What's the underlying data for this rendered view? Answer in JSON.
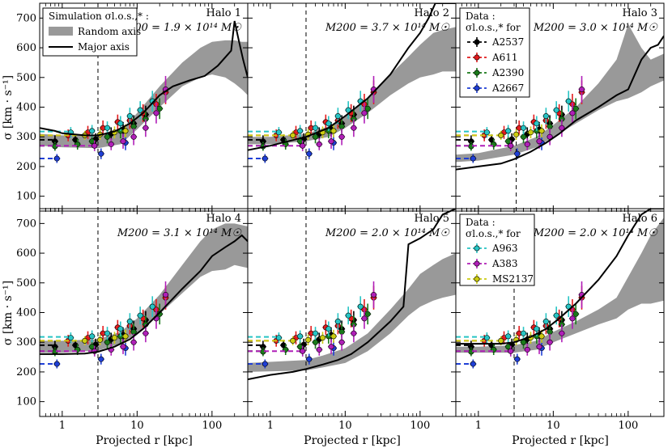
{
  "figure": {
    "ylabel": "σ [km · s⁻¹]",
    "xlabel": "Projected r [kpc]",
    "legend_sim": {
      "title": "Simulation σl.o.s.,* :",
      "items": [
        "Random axis",
        "Major axis"
      ]
    },
    "legend_data1": {
      "title": "Data :",
      "subtitle": "σl.o.s.,* for",
      "items": [
        "A2537",
        "A611",
        "A2390",
        "A2667"
      ]
    },
    "legend_data2": {
      "title": "Data :",
      "subtitle": "σl.o.s.,* for",
      "items": [
        "A963",
        "A383",
        "MS2137"
      ]
    }
  },
  "colors": {
    "A2537": "#000000",
    "A611": "#e31a1c",
    "A2390": "#1a7a1a",
    "A2667": "#1f3fd6",
    "A963": "#27c4c4",
    "A383": "#b01fb8",
    "MS2137": "#cccc10",
    "band": "#999999",
    "major": "#000000"
  },
  "chart_data": [
    {
      "type": "line",
      "panel": 1,
      "title": "Halo 1",
      "mass": "M200 = 1.9 × 10¹⁴ M☉",
      "xscale": "log",
      "xlim": [
        0.5,
        300
      ],
      "ylim": [
        50,
        750
      ],
      "yticks": [
        100,
        200,
        300,
        400,
        500,
        600,
        700
      ],
      "xticks": [
        1,
        10,
        100
      ],
      "xticklabels": [
        "1",
        "10",
        "100"
      ],
      "vline": 3,
      "band": {
        "x": [
          0.5,
          1,
          3,
          6,
          10,
          20,
          40,
          70,
          100,
          150,
          200,
          250,
          300
        ],
        "lo": [
          270,
          265,
          262,
          275,
          325,
          400,
          470,
          500,
          510,
          500,
          480,
          460,
          440
        ],
        "hi": [
          310,
          305,
          305,
          320,
          380,
          470,
          550,
          600,
          620,
          625,
          625,
          620,
          620
        ]
      },
      "major": {
        "x": [
          0.5,
          0.8,
          1,
          2,
          3,
          5,
          8,
          12,
          20,
          30,
          50,
          80,
          120,
          180,
          200,
          230,
          260,
          300
        ],
        "y": [
          330,
          320,
          312,
          305,
          305,
          318,
          345,
          380,
          440,
          470,
          490,
          505,
          540,
          590,
          690,
          620,
          560,
          500
        ]
      }
    },
    {
      "type": "line",
      "panel": 2,
      "title": "Halo 2",
      "mass": "M200 = 3.7 × 10¹⁴ M☉",
      "xscale": "log",
      "xlim": [
        0.5,
        300
      ],
      "ylim": [
        50,
        750
      ],
      "vline": 3,
      "band": {
        "x": [
          0.5,
          1,
          3,
          6,
          10,
          20,
          40,
          70,
          100,
          150,
          200,
          300
        ],
        "lo": [
          275,
          275,
          285,
          300,
          330,
          380,
          440,
          480,
          500,
          510,
          520,
          520
        ],
        "hi": [
          300,
          300,
          310,
          335,
          370,
          430,
          510,
          570,
          610,
          650,
          660,
          670
        ]
      },
      "major": {
        "x": [
          0.5,
          1,
          3,
          6,
          10,
          20,
          40,
          70,
          100,
          130,
          160,
          200,
          300
        ],
        "y": [
          255,
          270,
          300,
          330,
          370,
          430,
          510,
          600,
          650,
          700,
          750,
          750,
          750
        ]
      }
    },
    {
      "type": "line",
      "panel": 3,
      "title": "Halo 3",
      "mass": "M200 = 3.0 × 10¹⁴ M☉",
      "xscale": "log",
      "xlim": [
        0.5,
        300
      ],
      "ylim": [
        50,
        750
      ],
      "vline": 3.2,
      "band": {
        "x": [
          0.5,
          1,
          3,
          6,
          10,
          20,
          40,
          70,
          100,
          150,
          200,
          300
        ],
        "lo": [
          215,
          220,
          240,
          265,
          300,
          345,
          390,
          420,
          430,
          450,
          470,
          490
        ],
        "hi": [
          240,
          245,
          270,
          300,
          340,
          400,
          480,
          560,
          680,
          600,
          560,
          580
        ]
      },
      "major": {
        "x": [
          0.5,
          1,
          2,
          3,
          5,
          8,
          12,
          20,
          40,
          70,
          100,
          150,
          200,
          250,
          300
        ],
        "y": [
          190,
          200,
          210,
          225,
          250,
          280,
          310,
          355,
          400,
          440,
          460,
          560,
          600,
          610,
          640
        ]
      }
    },
    {
      "type": "line",
      "panel": 4,
      "title": "Halo 4",
      "mass": "M200 = 3.1 × 10¹⁴ M☉",
      "xscale": "log",
      "xlim": [
        0.5,
        300
      ],
      "ylim": [
        50,
        750
      ],
      "vline": 3,
      "band": {
        "x": [
          0.5,
          1,
          3,
          6,
          10,
          20,
          40,
          70,
          100,
          150,
          200,
          300
        ],
        "lo": [
          265,
          265,
          272,
          295,
          330,
          395,
          465,
          520,
          540,
          545,
          560,
          550
        ],
        "hi": [
          305,
          305,
          310,
          335,
          380,
          460,
          560,
          640,
          680,
          700,
          700,
          690
        ]
      },
      "major": {
        "x": [
          0.5,
          1,
          2,
          3,
          5,
          8,
          12,
          20,
          40,
          70,
          100,
          150,
          200,
          250,
          300
        ],
        "y": [
          260,
          260,
          262,
          268,
          285,
          310,
          345,
          400,
          480,
          540,
          590,
          620,
          640,
          660,
          640
        ]
      }
    },
    {
      "type": "line",
      "panel": 5,
      "title": "Halo 5",
      "mass": "M200 = 2.0 × 10¹⁴ M☉",
      "xscale": "log",
      "xlim": [
        0.5,
        300
      ],
      "ylim": [
        50,
        750
      ],
      "vline": 3,
      "band": {
        "x": [
          0.5,
          3,
          5,
          10,
          20,
          40,
          70,
          100,
          150,
          200,
          300
        ],
        "lo": [
          200,
          205,
          215,
          230,
          270,
          330,
          390,
          420,
          440,
          450,
          460
        ],
        "hi": [
          230,
          240,
          255,
          280,
          330,
          410,
          480,
          530,
          560,
          580,
          600
        ]
      },
      "major": {
        "x": [
          0.5,
          1,
          2,
          3,
          5,
          8,
          12,
          20,
          40,
          60,
          70,
          100,
          150,
          200,
          300
        ],
        "y": [
          175,
          190,
          200,
          210,
          225,
          240,
          260,
          300,
          370,
          420,
          630,
          650,
          680,
          730,
          750
        ]
      }
    },
    {
      "type": "line",
      "panel": 6,
      "title": "Halo 6",
      "mass": "M200 = 2.0 × 10¹⁴ M☉",
      "xscale": "log",
      "xlim": [
        0.5,
        300
      ],
      "ylim": [
        50,
        750
      ],
      "vline": 3,
      "band": {
        "x": [
          0.5,
          1,
          3,
          6,
          10,
          20,
          40,
          70,
          100,
          150,
          200,
          300
        ],
        "lo": [
          265,
          265,
          265,
          275,
          300,
          330,
          360,
          380,
          410,
          430,
          430,
          440
        ],
        "hi": [
          285,
          285,
          290,
          305,
          335,
          370,
          410,
          450,
          520,
          600,
          660,
          720
        ]
      },
      "major": {
        "x": [
          0.5,
          1,
          2,
          3,
          5,
          8,
          12,
          20,
          40,
          70,
          100,
          150,
          200,
          300
        ],
        "y": [
          295,
          295,
          295,
          300,
          318,
          345,
          380,
          430,
          510,
          590,
          660,
          730,
          750,
          750
        ]
      }
    }
  ],
  "clusters": [
    {
      "name": "A2537",
      "color": "#000000",
      "x": [
        0.8,
        1.5,
        2.8,
        4.5,
        6.5,
        9,
        13
      ],
      "y": [
        285,
        290,
        292,
        310,
        325,
        345,
        375
      ],
      "err": [
        20,
        18,
        20,
        22,
        25,
        28,
        30
      ],
      "base": 290
    },
    {
      "name": "A611",
      "color": "#e31a1c",
      "x": [
        1.2,
        2.2,
        3.5,
        5.5,
        8,
        12,
        18,
        24
      ],
      "y": [
        305,
        315,
        330,
        350,
        355,
        380,
        410,
        450
      ],
      "err": [
        20,
        22,
        25,
        25,
        28,
        30,
        35,
        40
      ],
      "base": 305
    },
    {
      "name": "A2390",
      "color": "#1a7a1a",
      "x": [
        0.8,
        1.6,
        2.5,
        4,
        6,
        9,
        13,
        20
      ],
      "y": [
        268,
        275,
        285,
        300,
        320,
        335,
        360,
        395
      ],
      "err": [
        15,
        18,
        20,
        22,
        25,
        28,
        30,
        35
      ],
      "base": 270
    },
    {
      "name": "A2667",
      "color": "#1f3fd6",
      "x": [
        0.85,
        3.3,
        7
      ],
      "y": [
        227,
        243,
        280
      ],
      "err": [
        15,
        18,
        25
      ],
      "base": 227
    },
    {
      "name": "A963",
      "color": "#27c4c4",
      "x": [
        1.3,
        2.5,
        4,
        6,
        8,
        11,
        16
      ],
      "y": [
        315,
        320,
        330,
        345,
        370,
        390,
        420
      ],
      "err": [
        18,
        20,
        22,
        25,
        28,
        30,
        35
      ],
      "base": 318
    },
    {
      "name": "A383",
      "color": "#b01fb8",
      "x": [
        2.7,
        4.5,
        6.5,
        9,
        13,
        18,
        24
      ],
      "y": [
        270,
        275,
        285,
        300,
        330,
        380,
        460
      ],
      "err": [
        18,
        20,
        25,
        28,
        30,
        35,
        45
      ],
      "base": 270
    },
    {
      "name": "MS2137",
      "color": "#cccc10",
      "x": [
        2,
        3.2,
        5,
        7
      ],
      "y": [
        305,
        308,
        315,
        320
      ],
      "err": [
        15,
        18,
        20,
        22
      ],
      "base": 305
    }
  ]
}
